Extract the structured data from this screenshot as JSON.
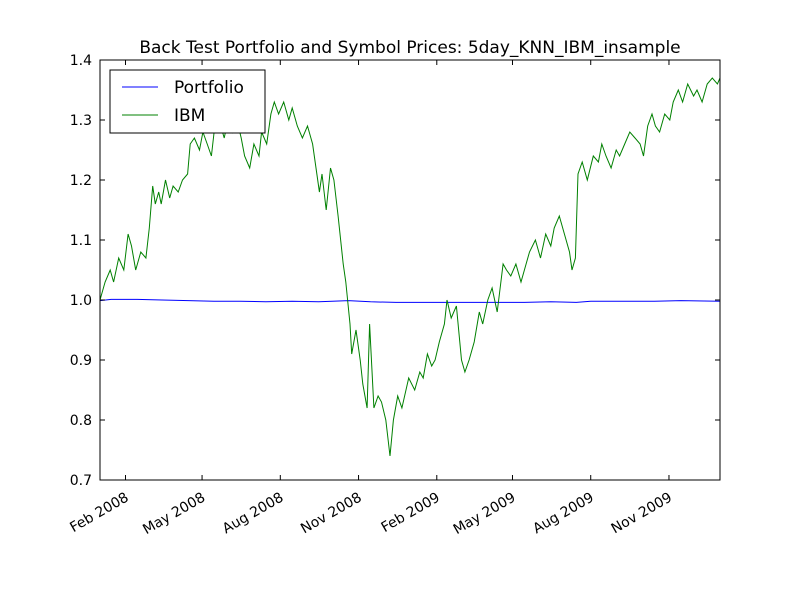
{
  "chart_data": {
    "type": "line",
    "title": "Back Test Portfolio and Symbol Prices: 5day_KNN_IBM_insample",
    "xlabel": "",
    "ylabel": "",
    "ylim": [
      0.7,
      1.4
    ],
    "yticks": [
      "0.7",
      "0.8",
      "0.9",
      "1.0",
      "1.1",
      "1.2",
      "1.3",
      "1.4"
    ],
    "xlim": [
      "2008-01-02",
      "2009-12-31"
    ],
    "xticks": [
      {
        "date": "2008-02-01",
        "label": "Feb 2008"
      },
      {
        "date": "2008-05-01",
        "label": "May 2008"
      },
      {
        "date": "2008-08-01",
        "label": "Aug 2008"
      },
      {
        "date": "2008-11-01",
        "label": "Nov 2008"
      },
      {
        "date": "2009-02-01",
        "label": "Feb 2009"
      },
      {
        "date": "2009-05-01",
        "label": "May 2009"
      },
      {
        "date": "2009-08-01",
        "label": "Aug 2009"
      },
      {
        "date": "2009-11-01",
        "label": "Nov 2009"
      }
    ],
    "grid": false,
    "legend": "top-left",
    "series": [
      {
        "name": "Portfolio",
        "color": "#0000ff",
        "points": [
          [
            "2008-01-02",
            0.999
          ],
          [
            "2008-01-15",
            1.001
          ],
          [
            "2008-02-15",
            1.001
          ],
          [
            "2008-03-15",
            1.0
          ],
          [
            "2008-04-15",
            0.999
          ],
          [
            "2008-05-15",
            0.998
          ],
          [
            "2008-06-15",
            0.998
          ],
          [
            "2008-07-15",
            0.997
          ],
          [
            "2008-08-15",
            0.998
          ],
          [
            "2008-09-15",
            0.997
          ],
          [
            "2008-10-01",
            0.998
          ],
          [
            "2008-10-20",
            0.999
          ],
          [
            "2008-11-15",
            0.997
          ],
          [
            "2008-12-15",
            0.996
          ],
          [
            "2009-01-15",
            0.996
          ],
          [
            "2009-02-15",
            0.996
          ],
          [
            "2009-03-15",
            0.996
          ],
          [
            "2009-04-15",
            0.996
          ],
          [
            "2009-05-15",
            0.996
          ],
          [
            "2009-06-15",
            0.997
          ],
          [
            "2009-07-15",
            0.996
          ],
          [
            "2009-08-01",
            0.998
          ],
          [
            "2009-09-15",
            0.998
          ],
          [
            "2009-10-15",
            0.998
          ],
          [
            "2009-11-15",
            0.999
          ],
          [
            "2009-12-31",
            0.998
          ]
        ]
      },
      {
        "name": "IBM",
        "color": "#008000",
        "points": [
          [
            "2008-01-02",
            1.0
          ],
          [
            "2008-01-08",
            1.03
          ],
          [
            "2008-01-14",
            1.05
          ],
          [
            "2008-01-18",
            1.03
          ],
          [
            "2008-01-24",
            1.07
          ],
          [
            "2008-01-30",
            1.05
          ],
          [
            "2008-02-04",
            1.11
          ],
          [
            "2008-02-08",
            1.09
          ],
          [
            "2008-02-13",
            1.05
          ],
          [
            "2008-02-19",
            1.08
          ],
          [
            "2008-02-25",
            1.07
          ],
          [
            "2008-02-29",
            1.12
          ],
          [
            "2008-03-04",
            1.19
          ],
          [
            "2008-03-07",
            1.16
          ],
          [
            "2008-03-11",
            1.18
          ],
          [
            "2008-03-14",
            1.16
          ],
          [
            "2008-03-19",
            1.2
          ],
          [
            "2008-03-24",
            1.17
          ],
          [
            "2008-03-28",
            1.19
          ],
          [
            "2008-04-03",
            1.18
          ],
          [
            "2008-04-08",
            1.2
          ],
          [
            "2008-04-14",
            1.21
          ],
          [
            "2008-04-17",
            1.26
          ],
          [
            "2008-04-22",
            1.27
          ],
          [
            "2008-04-28",
            1.25
          ],
          [
            "2008-05-02",
            1.28
          ],
          [
            "2008-05-07",
            1.26
          ],
          [
            "2008-05-12",
            1.24
          ],
          [
            "2008-05-16",
            1.29
          ],
          [
            "2008-05-21",
            1.3
          ],
          [
            "2008-05-27",
            1.27
          ],
          [
            "2008-06-02",
            1.31
          ],
          [
            "2008-06-06",
            1.28
          ],
          [
            "2008-06-11",
            1.3
          ],
          [
            "2008-06-16",
            1.27
          ],
          [
            "2008-06-20",
            1.24
          ],
          [
            "2008-06-26",
            1.22
          ],
          [
            "2008-07-01",
            1.26
          ],
          [
            "2008-07-07",
            1.24
          ],
          [
            "2008-07-10",
            1.28
          ],
          [
            "2008-07-16",
            1.26
          ],
          [
            "2008-07-21",
            1.31
          ],
          [
            "2008-07-25",
            1.33
          ],
          [
            "2008-07-30",
            1.31
          ],
          [
            "2008-08-05",
            1.33
          ],
          [
            "2008-08-11",
            1.3
          ],
          [
            "2008-08-15",
            1.32
          ],
          [
            "2008-08-21",
            1.29
          ],
          [
            "2008-08-27",
            1.27
          ],
          [
            "2008-09-02",
            1.29
          ],
          [
            "2008-09-08",
            1.26
          ],
          [
            "2008-09-12",
            1.22
          ],
          [
            "2008-09-16",
            1.18
          ],
          [
            "2008-09-19",
            1.21
          ],
          [
            "2008-09-24",
            1.15
          ],
          [
            "2008-09-29",
            1.22
          ],
          [
            "2008-10-03",
            1.2
          ],
          [
            "2008-10-08",
            1.14
          ],
          [
            "2008-10-14",
            1.06
          ],
          [
            "2008-10-17",
            1.03
          ],
          [
            "2008-10-22",
            0.96
          ],
          [
            "2008-10-24",
            0.91
          ],
          [
            "2008-10-29",
            0.95
          ],
          [
            "2008-11-03",
            0.9
          ],
          [
            "2008-11-06",
            0.86
          ],
          [
            "2008-11-11",
            0.82
          ],
          [
            "2008-11-14",
            0.96
          ],
          [
            "2008-11-19",
            0.82
          ],
          [
            "2008-11-24",
            0.84
          ],
          [
            "2008-11-28",
            0.83
          ],
          [
            "2008-12-03",
            0.8
          ],
          [
            "2008-12-08",
            0.74
          ],
          [
            "2008-12-12",
            0.8
          ],
          [
            "2008-12-17",
            0.84
          ],
          [
            "2008-12-22",
            0.82
          ],
          [
            "2008-12-30",
            0.87
          ],
          [
            "2009-01-06",
            0.85
          ],
          [
            "2009-01-12",
            0.88
          ],
          [
            "2009-01-16",
            0.87
          ],
          [
            "2009-01-21",
            0.91
          ],
          [
            "2009-01-26",
            0.89
          ],
          [
            "2009-01-30",
            0.9
          ],
          [
            "2009-02-04",
            0.93
          ],
          [
            "2009-02-10",
            0.96
          ],
          [
            "2009-02-13",
            1.0
          ],
          [
            "2009-02-18",
            0.97
          ],
          [
            "2009-02-24",
            0.99
          ],
          [
            "2009-03-02",
            0.9
          ],
          [
            "2009-03-06",
            0.88
          ],
          [
            "2009-03-11",
            0.9
          ],
          [
            "2009-03-17",
            0.93
          ],
          [
            "2009-03-23",
            0.98
          ],
          [
            "2009-03-27",
            0.96
          ],
          [
            "2009-04-02",
            1.0
          ],
          [
            "2009-04-07",
            1.02
          ],
          [
            "2009-04-13",
            0.98
          ],
          [
            "2009-04-20",
            1.06
          ],
          [
            "2009-04-24",
            1.05
          ],
          [
            "2009-04-29",
            1.04
          ],
          [
            "2009-05-05",
            1.06
          ],
          [
            "2009-05-11",
            1.03
          ],
          [
            "2009-05-15",
            1.05
          ],
          [
            "2009-05-21",
            1.08
          ],
          [
            "2009-05-28",
            1.1
          ],
          [
            "2009-06-03",
            1.07
          ],
          [
            "2009-06-09",
            1.11
          ],
          [
            "2009-06-15",
            1.09
          ],
          [
            "2009-06-19",
            1.12
          ],
          [
            "2009-06-25",
            1.14
          ],
          [
            "2009-07-01",
            1.11
          ],
          [
            "2009-07-07",
            1.08
          ],
          [
            "2009-07-10",
            1.05
          ],
          [
            "2009-07-14",
            1.07
          ],
          [
            "2009-07-17",
            1.21
          ],
          [
            "2009-07-22",
            1.23
          ],
          [
            "2009-07-28",
            1.2
          ],
          [
            "2009-08-04",
            1.24
          ],
          [
            "2009-08-10",
            1.23
          ],
          [
            "2009-08-14",
            1.26
          ],
          [
            "2009-08-19",
            1.24
          ],
          [
            "2009-08-25",
            1.22
          ],
          [
            "2009-08-31",
            1.25
          ],
          [
            "2009-09-04",
            1.24
          ],
          [
            "2009-09-10",
            1.26
          ],
          [
            "2009-09-16",
            1.28
          ],
          [
            "2009-09-22",
            1.27
          ],
          [
            "2009-09-28",
            1.26
          ],
          [
            "2009-10-02",
            1.24
          ],
          [
            "2009-10-07",
            1.29
          ],
          [
            "2009-10-12",
            1.31
          ],
          [
            "2009-10-16",
            1.29
          ],
          [
            "2009-10-21",
            1.28
          ],
          [
            "2009-10-27",
            1.31
          ],
          [
            "2009-11-02",
            1.3
          ],
          [
            "2009-11-06",
            1.33
          ],
          [
            "2009-11-12",
            1.35
          ],
          [
            "2009-11-17",
            1.33
          ],
          [
            "2009-11-23",
            1.36
          ],
          [
            "2009-11-30",
            1.34
          ],
          [
            "2009-12-04",
            1.35
          ],
          [
            "2009-12-10",
            1.33
          ],
          [
            "2009-12-16",
            1.36
          ],
          [
            "2009-12-22",
            1.37
          ],
          [
            "2009-12-28",
            1.36
          ],
          [
            "2009-12-31",
            1.37
          ]
        ]
      }
    ]
  }
}
